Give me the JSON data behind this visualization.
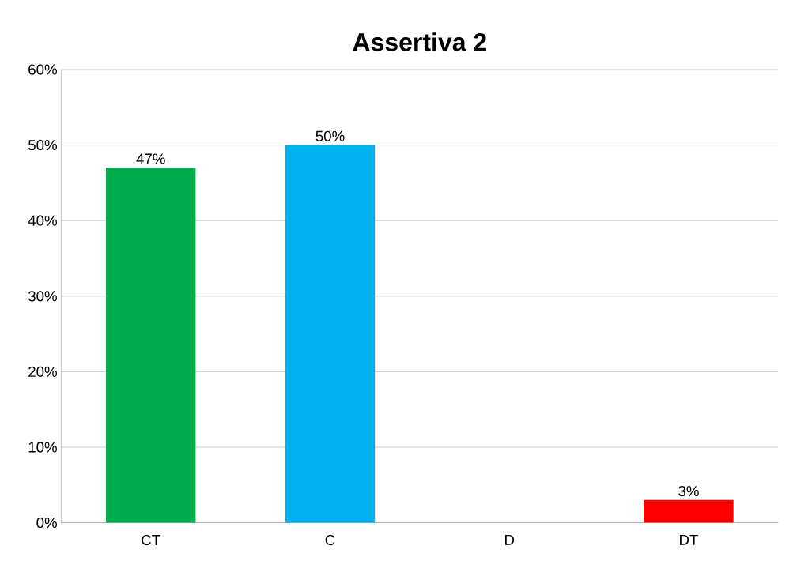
{
  "chart_data": {
    "type": "bar",
    "title": "Assertiva 2",
    "categories": [
      "CT",
      "C",
      "D",
      "DT"
    ],
    "values": [
      47,
      50,
      0,
      3
    ],
    "colors": [
      "#00ac4e",
      "#00b0f0",
      "#7f7f7f",
      "#ff0000"
    ],
    "value_labels": [
      "47%",
      "50%",
      null,
      "3%"
    ],
    "ylim": [
      0,
      60
    ],
    "yticks": [
      {
        "value": 0,
        "label": "0%"
      },
      {
        "value": 10,
        "label": "10%"
      },
      {
        "value": 20,
        "label": "20%"
      },
      {
        "value": 30,
        "label": "30%"
      },
      {
        "value": 40,
        "label": "40%"
      },
      {
        "value": 50,
        "label": "50%"
      },
      {
        "value": 60,
        "label": "60%"
      }
    ],
    "grid": "y"
  }
}
